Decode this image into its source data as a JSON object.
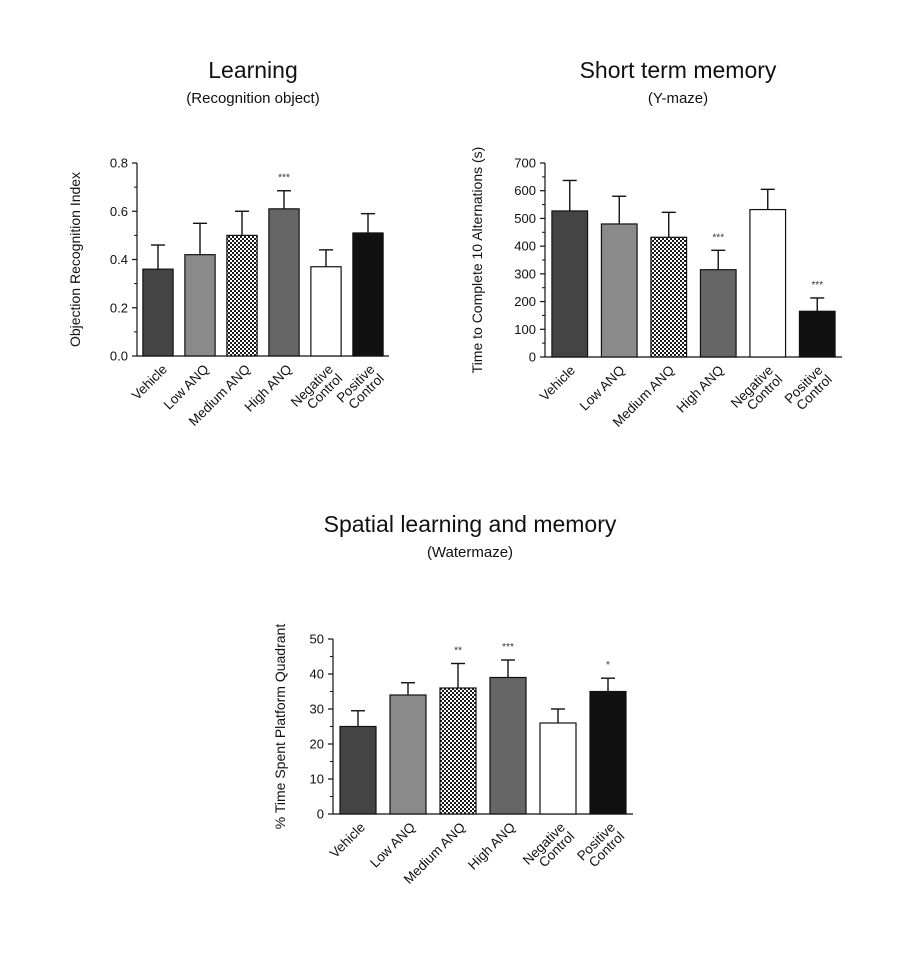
{
  "chart_data": [
    {
      "id": "learning",
      "type": "bar",
      "title": "Learning",
      "subtitle": "(Recognition object)",
      "xlabel": "",
      "ylabel": "Objection Recognition Index",
      "ylim": [
        0,
        0.8
      ],
      "yticks": [
        "0.0",
        "0.2",
        "0.4",
        "0.6",
        "0.8"
      ],
      "categories": [
        [
          "Vehicle"
        ],
        [
          "Low ANQ"
        ],
        [
          "Medium ANQ"
        ],
        [
          "High ANQ"
        ],
        [
          "Negative",
          "Control"
        ],
        [
          "Positive",
          "Control"
        ]
      ],
      "values": [
        0.36,
        0.42,
        0.5,
        0.61,
        0.37,
        0.51
      ],
      "errors": [
        0.1,
        0.13,
        0.1,
        0.075,
        0.07,
        0.08
      ],
      "significance": [
        "",
        "",
        "",
        "***",
        "",
        ""
      ],
      "fills": [
        "#444444",
        "#8a8a8a",
        "pattern",
        "#666666",
        "#ffffff",
        "#111111"
      ],
      "grid": false
    },
    {
      "id": "short-term",
      "type": "bar",
      "title": "Short term memory",
      "subtitle": "(Y-maze)",
      "xlabel": "",
      "ylabel": "Time to Complete 10 Alternations (s)",
      "ylim": [
        0,
        700
      ],
      "yticks": [
        "0",
        "100",
        "200",
        "300",
        "400",
        "500",
        "600",
        "700"
      ],
      "categories": [
        [
          "Vehicle"
        ],
        [
          "Low ANQ"
        ],
        [
          "Medium ANQ"
        ],
        [
          "High ANQ"
        ],
        [
          "Negative",
          "Control"
        ],
        [
          "Positive",
          "Control"
        ]
      ],
      "values": [
        527,
        480,
        432,
        315,
        532,
        165
      ],
      "errors": [
        110,
        100,
        90,
        70,
        73,
        48
      ],
      "significance": [
        "",
        "",
        "",
        "***",
        "",
        "***"
      ],
      "fills": [
        "#444444",
        "#8a8a8a",
        "pattern",
        "#666666",
        "#ffffff",
        "#111111"
      ],
      "grid": false
    },
    {
      "id": "spatial",
      "type": "bar",
      "title": "Spatial learning and memory",
      "subtitle": "(Watermaze)",
      "xlabel": "",
      "ylabel": "% Time Spent Platform Quadrant",
      "ylim": [
        0,
        50
      ],
      "yticks": [
        "0",
        "10",
        "20",
        "30",
        "40",
        "50"
      ],
      "categories": [
        [
          "Vehicle"
        ],
        [
          "Low ANQ"
        ],
        [
          "Medium ANQ"
        ],
        [
          "High ANQ"
        ],
        [
          "Negative",
          "Control"
        ],
        [
          "Positive",
          "Control"
        ]
      ],
      "values": [
        25,
        34,
        36,
        39,
        26,
        35
      ],
      "errors": [
        4.5,
        3.5,
        7,
        5,
        4,
        3.8
      ],
      "significance": [
        "",
        "",
        "**",
        "***",
        "",
        "*"
      ],
      "fills": [
        "#444444",
        "#8a8a8a",
        "pattern",
        "#666666",
        "#ffffff",
        "#111111"
      ],
      "grid": false
    }
  ]
}
